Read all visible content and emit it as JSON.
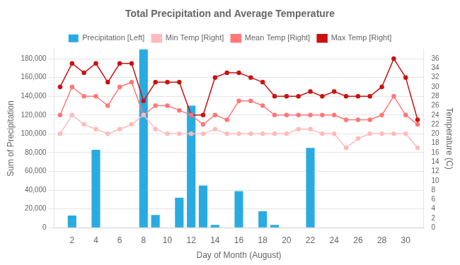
{
  "chart_data": {
    "type": "bar",
    "title": "Total Precipitation and Average Temperature",
    "xlabel": "Day of Month (August)",
    "ylabel": "Sum of Precipitation",
    "y2label": "Temperature (C)",
    "x": [
      1,
      2,
      3,
      4,
      5,
      6,
      7,
      8,
      9,
      10,
      11,
      12,
      13,
      14,
      15,
      16,
      17,
      18,
      19,
      20,
      21,
      22,
      23,
      24,
      25,
      26,
      27,
      28,
      29,
      30,
      31
    ],
    "series": [
      {
        "name": "Precipitation [Left]",
        "type": "bar",
        "color": "#29abe2",
        "values": [
          0,
          13000,
          0,
          83000,
          0,
          0,
          0,
          190000,
          13500,
          0,
          32000,
          130000,
          45000,
          3000,
          0,
          39000,
          0,
          17500,
          3000,
          0,
          0,
          85000,
          0,
          0,
          0,
          0,
          0,
          0,
          0,
          0,
          0
        ]
      },
      {
        "name": "Min Temp [Right]",
        "type": "line",
        "axis": "y2",
        "color": "#ffbbbb",
        "marker": "circle",
        "values": [
          20,
          24,
          22,
          21,
          20,
          21,
          22,
          24,
          21,
          20,
          20,
          20,
          20,
          21,
          20,
          20,
          20,
          20,
          20,
          20,
          21,
          21,
          20,
          20,
          17,
          19,
          20,
          20,
          20,
          20,
          17
        ]
      },
      {
        "name": "Mean Temp [Right]",
        "type": "line",
        "axis": "y2",
        "color": "#ff7777",
        "marker": "circle",
        "values": [
          24,
          30,
          28,
          28,
          26,
          30,
          31,
          24,
          26,
          26,
          25,
          24,
          22,
          24,
          23,
          27,
          27,
          26,
          24,
          24,
          24,
          24,
          24,
          24,
          23,
          23,
          23,
          24,
          28,
          24,
          22
        ]
      },
      {
        "name": "Max Temp [Right]",
        "type": "line",
        "axis": "y2",
        "color": "#cc1111",
        "marker": "circle",
        "values": [
          30,
          35,
          33,
          35,
          31,
          35,
          35,
          27,
          31,
          31,
          31,
          24,
          24,
          32,
          33,
          33,
          32,
          31,
          28,
          28,
          28,
          29,
          28,
          29,
          28,
          28,
          28,
          30,
          36,
          32,
          23
        ]
      }
    ],
    "xlim": [
      0.5,
      31.5
    ],
    "xticks": [
      2,
      4,
      6,
      8,
      10,
      12,
      14,
      16,
      18,
      20,
      22,
      24,
      26,
      28,
      30
    ],
    "ylim": [
      0,
      190000
    ],
    "yticks": [
      0,
      {
        "value": 20000,
        "label": "20,000"
      },
      {
        "value": 40000,
        "label": "40,000"
      },
      {
        "value": 60000,
        "label": "60,000"
      },
      {
        "value": 80000,
        "label": "80,000"
      },
      {
        "value": 100000,
        "label": "100,000"
      },
      {
        "value": 120000,
        "label": "120,000"
      },
      {
        "value": 140000,
        "label": "140,000"
      },
      {
        "value": 160000,
        "label": "160,000"
      },
      {
        "value": 180000,
        "label": "180,000"
      }
    ],
    "y2lim": [
      0,
      38
    ],
    "y2ticks": [
      0,
      2,
      4,
      6,
      8,
      10,
      12,
      14,
      16,
      18,
      20,
      22,
      24,
      26,
      28,
      30,
      32,
      34,
      36
    ],
    "grid": "y",
    "legend": "top"
  }
}
